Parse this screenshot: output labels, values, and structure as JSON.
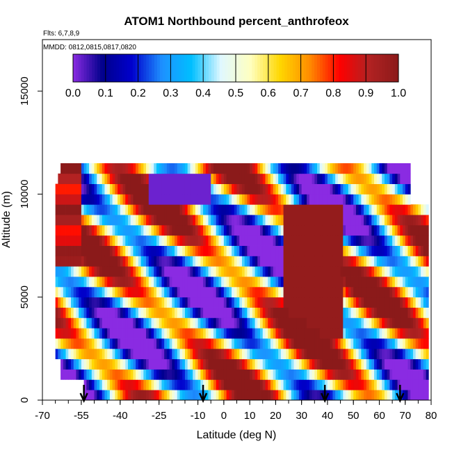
{
  "chart_data": {
    "type": "heatmap",
    "title": "ATOM1 Northbound percent_anthrofeox",
    "subtitle_flights": "Flts: 6,7,8,9",
    "subtitle_dates": "MMDD: 0812,0815,0817,0820",
    "xlabel": "Latitude (deg N)",
    "ylabel": "Altitude (m)",
    "xlim": [
      -70,
      80
    ],
    "ylim": [
      0,
      17500
    ],
    "x_ticks": [
      "-70",
      "-55",
      "-40",
      "-25",
      "-10",
      "0",
      "10",
      "20",
      "30",
      "40",
      "50",
      "60",
      "70",
      "80"
    ],
    "x_tick_values": [
      -70,
      -55,
      -40,
      -25,
      -10,
      0,
      10,
      20,
      30,
      40,
      50,
      60,
      70,
      80
    ],
    "y_ticks": [
      "0",
      "5000",
      "10000",
      "15000"
    ],
    "y_tick_values": [
      0,
      5000,
      10000,
      15000
    ],
    "colorbar": {
      "min": 0,
      "max": 1,
      "ticks": [
        "0.0",
        "0.1",
        "0.2",
        "0.3",
        "0.4",
        "0.5",
        "0.6",
        "0.7",
        "0.8",
        "0.9",
        "1.0"
      ],
      "colors": [
        "#8a2be2",
        "#00008b",
        "#0000cd",
        "#1e90ff",
        "#00bfff",
        "#e0f8ff",
        "#ffffc0",
        "#ffd700",
        "#ff8c00",
        "#ff0000",
        "#b22222",
        "#8b1a1a"
      ]
    },
    "profile_markers_lat": [
      -54,
      -8,
      39,
      68
    ],
    "data_lat_range": [
      -65,
      79
    ],
    "data_alt_range": [
      0,
      11500
    ],
    "grid": false
  }
}
